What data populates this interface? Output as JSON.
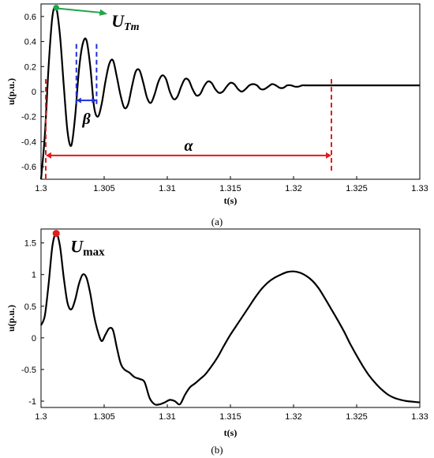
{
  "chart_data": [
    {
      "type": "line",
      "caption": "(a)",
      "xlabel": "t(s)",
      "ylabel": "u(p.u.)",
      "xlim": [
        1.3,
        1.33
      ],
      "ylim": [
        -0.7,
        0.7
      ],
      "xticks": [
        1.3,
        1.305,
        1.31,
        1.315,
        1.32,
        1.325,
        1.33
      ],
      "xtick_labels": [
        "1.3",
        "1.305",
        "1.31",
        "1.315",
        "1.32",
        "1.325",
        "1.33"
      ],
      "yticks": [
        -0.6,
        -0.4,
        -0.2,
        0,
        0.2,
        0.4,
        0.6
      ],
      "ytick_labels": [
        "-0.6",
        "-0.4",
        "-0.2",
        "0",
        "0.2",
        "0.4",
        "0.6"
      ],
      "series": [
        {
          "color": "#000000",
          "x": [
            1.3,
            1.3003,
            1.3006,
            1.3009,
            1.3012,
            1.3015,
            1.3018,
            1.3021,
            1.3024,
            1.3027,
            1.303,
            1.3033,
            1.3036,
            1.3039,
            1.3042,
            1.3045,
            1.3048,
            1.3051,
            1.3054,
            1.3057,
            1.306,
            1.3063,
            1.3066,
            1.3069,
            1.3072,
            1.3075,
            1.3078,
            1.3081,
            1.3084,
            1.3087,
            1.309,
            1.3093,
            1.3096,
            1.3099,
            1.3102,
            1.3105,
            1.3108,
            1.3111,
            1.3114,
            1.3117,
            1.312,
            1.3123,
            1.3126,
            1.3129,
            1.3132,
            1.3135,
            1.3138,
            1.3141,
            1.3144,
            1.3147,
            1.315,
            1.3153,
            1.3156,
            1.3159,
            1.3162,
            1.3165,
            1.3168,
            1.3171,
            1.3174,
            1.3177,
            1.318,
            1.3183,
            1.3186,
            1.3189,
            1.3192,
            1.3195,
            1.3198,
            1.3201,
            1.3204,
            1.3207,
            1.321,
            1.322,
            1.323,
            1.324,
            1.325,
            1.326,
            1.327,
            1.328,
            1.329,
            1.33
          ],
          "y": [
            -0.7,
            -0.35,
            0.2,
            0.6,
            0.67,
            0.45,
            0.05,
            -0.32,
            -0.43,
            -0.2,
            0.17,
            0.38,
            0.41,
            0.2,
            -0.12,
            -0.2,
            -0.1,
            0.08,
            0.22,
            0.25,
            0.12,
            -0.03,
            -0.13,
            -0.1,
            0.04,
            0.16,
            0.17,
            0.07,
            -0.05,
            -0.09,
            -0.02,
            0.08,
            0.13,
            0.1,
            0.0,
            -0.06,
            -0.04,
            0.04,
            0.1,
            0.09,
            0.02,
            -0.03,
            -0.02,
            0.04,
            0.08,
            0.07,
            0.02,
            -0.01,
            0.0,
            0.04,
            0.07,
            0.06,
            0.02,
            0.0,
            0.02,
            0.05,
            0.06,
            0.05,
            0.02,
            0.02,
            0.04,
            0.06,
            0.05,
            0.03,
            0.03,
            0.05,
            0.05,
            0.04,
            0.04,
            0.05,
            0.05,
            0.05,
            0.05,
            0.05,
            0.05,
            0.05,
            0.05,
            0.05,
            0.05,
            0.05
          ]
        }
      ],
      "annotations": {
        "utm_label": "U",
        "utm_sub": "Tm",
        "utm_point": [
          1.3012,
          0.67
        ],
        "utm_color": "#22a54a",
        "beta_label": "β",
        "beta_range": [
          1.3028,
          1.3044
        ],
        "beta_color": "#1f2fd6",
        "alpha_label": "α",
        "alpha_range": [
          1.3,
          1.323
        ],
        "alpha_y": -0.51,
        "alpha_color": "#e31a1c"
      }
    },
    {
      "type": "line",
      "caption": "(b)",
      "xlabel": "t(s)",
      "ylabel": "u(p.u.)",
      "xlim": [
        1.3,
        1.33
      ],
      "ylim": [
        -1.1,
        1.72
      ],
      "xticks": [
        1.3,
        1.305,
        1.31,
        1.315,
        1.32,
        1.325,
        1.33
      ],
      "xtick_labels": [
        "1.3",
        "1.305",
        "1.31",
        "1.315",
        "1.32",
        "1.325",
        "1.33"
      ],
      "yticks": [
        -1,
        -0.5,
        0,
        0.5,
        1,
        1.5
      ],
      "ytick_labels": [
        "-1",
        "-0.5",
        "0",
        "0.5",
        "1",
        "1.5"
      ],
      "series": [
        {
          "color": "#000000",
          "x": [
            1.3,
            1.3003,
            1.3006,
            1.3009,
            1.3012,
            1.3015,
            1.3018,
            1.3021,
            1.3024,
            1.3027,
            1.303,
            1.3033,
            1.3036,
            1.3039,
            1.3042,
            1.3045,
            1.3048,
            1.3051,
            1.3054,
            1.3057,
            1.306,
            1.3063,
            1.3066,
            1.307,
            1.3074,
            1.3078,
            1.3082,
            1.3086,
            1.309,
            1.3094,
            1.3098,
            1.3102,
            1.3106,
            1.311,
            1.3114,
            1.3118,
            1.3122,
            1.3126,
            1.313,
            1.3135,
            1.314,
            1.3145,
            1.315,
            1.3155,
            1.316,
            1.3165,
            1.317,
            1.3175,
            1.318,
            1.3185,
            1.319,
            1.3195,
            1.32,
            1.3205,
            1.321,
            1.3215,
            1.322,
            1.3225,
            1.323,
            1.3235,
            1.324,
            1.3245,
            1.325,
            1.3255,
            1.326,
            1.3265,
            1.327,
            1.3275,
            1.328,
            1.3285,
            1.329,
            1.3295,
            1.33
          ],
          "y": [
            0.2,
            0.35,
            0.85,
            1.45,
            1.65,
            1.45,
            0.95,
            0.55,
            0.45,
            0.6,
            0.85,
            1.0,
            0.95,
            0.7,
            0.35,
            0.1,
            -0.05,
            0.05,
            0.15,
            0.12,
            -0.15,
            -0.4,
            -0.5,
            -0.55,
            -0.62,
            -0.65,
            -0.7,
            -0.95,
            -1.05,
            -1.05,
            -1.02,
            -0.98,
            -1.0,
            -1.05,
            -0.9,
            -0.78,
            -0.72,
            -0.65,
            -0.58,
            -0.45,
            -0.3,
            -0.12,
            0.05,
            0.2,
            0.35,
            0.5,
            0.65,
            0.78,
            0.88,
            0.95,
            1.0,
            1.04,
            1.05,
            1.03,
            0.98,
            0.9,
            0.78,
            0.62,
            0.45,
            0.28,
            0.1,
            -0.1,
            -0.28,
            -0.45,
            -0.6,
            -0.72,
            -0.82,
            -0.9,
            -0.95,
            -0.98,
            -1.0,
            -1.01,
            -1.02
          ]
        }
      ],
      "annotations": {
        "umax_label": "U",
        "umax_sub": "max",
        "umax_point": [
          1.3012,
          1.65
        ],
        "umax_color": "#e31a1c"
      }
    }
  ]
}
